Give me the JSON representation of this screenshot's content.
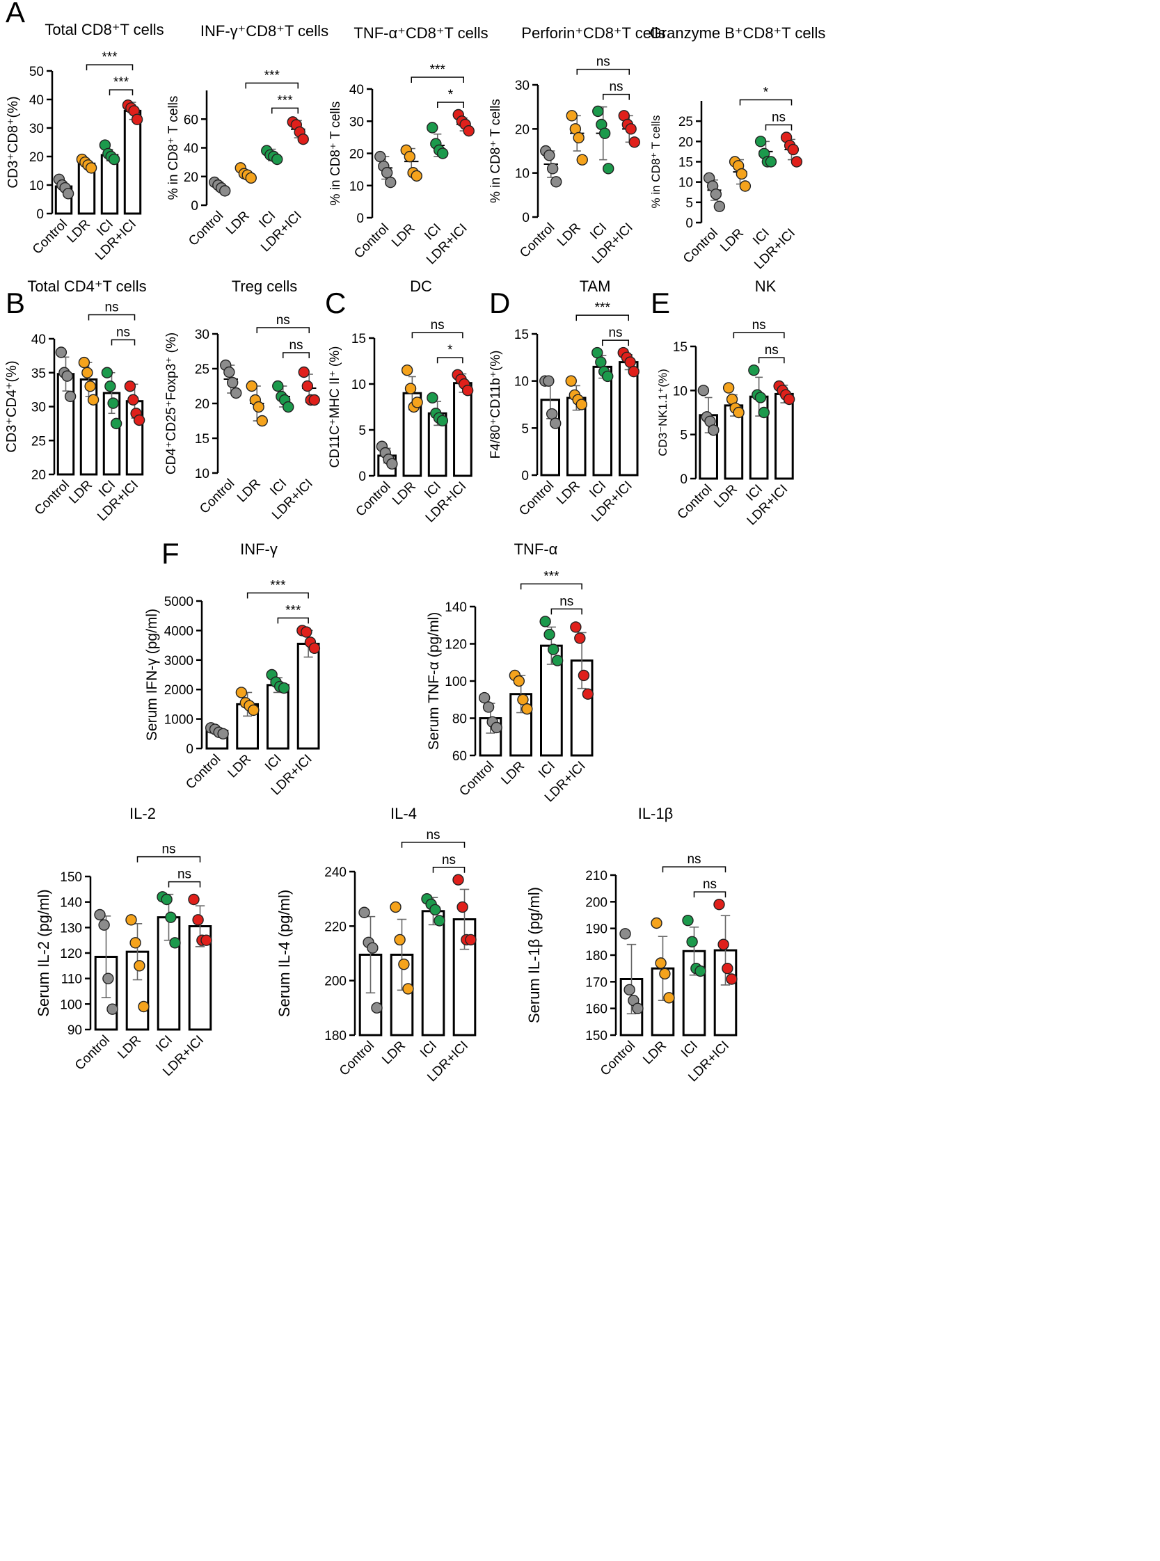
{
  "colors": {
    "Control": "#8c8c8c",
    "LDR": "#f5a31c",
    "ICI": "#1c9a4c",
    "LDR+ICI": "#e0201b"
  },
  "chart_data": [
    {
      "panel": "A",
      "type": "bar",
      "title": "Total CD8⁺T cells",
      "ylabel": "CD3⁺CD8⁺(%)",
      "ylim": [
        0,
        50
      ],
      "yticks": [
        0,
        10,
        20,
        30,
        40,
        50
      ],
      "categories": [
        "Control",
        "LDR",
        "ICI",
        "LDR+ICI"
      ],
      "means": [
        9.5,
        17.5,
        20.5,
        36
      ],
      "sd": [
        1.5,
        1.2,
        2.0,
        3.0
      ],
      "points": [
        [
          12,
          10,
          9,
          7
        ],
        [
          19,
          18,
          17,
          16
        ],
        [
          24,
          21,
          20,
          19
        ],
        [
          38,
          37,
          36,
          33
        ]
      ],
      "brackets": [
        {
          "from": 1,
          "to": 3,
          "label": "***"
        },
        {
          "from": 2,
          "to": 3,
          "label": "***"
        }
      ]
    },
    {
      "type": "scatter",
      "title": "INF-γ⁺CD8⁺T cells",
      "ylabel": "% in CD8⁺ T cells",
      "ylim": [
        0,
        80
      ],
      "yticks": [
        0,
        20,
        40,
        60
      ],
      "categories": [
        "Control",
        "LDR",
        "ICI",
        "LDR+ICI"
      ],
      "means": [
        13,
        22,
        35,
        53
      ],
      "sd": [
        3,
        2,
        4,
        6
      ],
      "points": [
        [
          16,
          14,
          12,
          10
        ],
        [
          26,
          22,
          21,
          19
        ],
        [
          38,
          35,
          34,
          32
        ],
        [
          58,
          56,
          51,
          46
        ]
      ],
      "brackets": [
        {
          "from": 1,
          "to": 3,
          "label": "***"
        },
        {
          "from": 2,
          "to": 3,
          "label": "***"
        }
      ]
    },
    {
      "type": "scatter",
      "title": "TNF-α⁺CD8⁺T cells",
      "ylabel": "% in CD8⁺ T cells",
      "ylim": [
        0,
        40
      ],
      "yticks": [
        0,
        10,
        20,
        30,
        40
      ],
      "categories": [
        "Control",
        "LDR",
        "ICI",
        "LDR+ICI"
      ],
      "means": [
        15.5,
        17.5,
        22.5,
        29
      ],
      "sd": [
        3.5,
        4,
        3.5,
        2
      ],
      "points": [
        [
          19,
          16,
          14,
          11
        ],
        [
          21,
          19,
          14,
          13
        ],
        [
          28,
          23,
          21,
          20
        ],
        [
          32,
          30,
          29,
          27
        ]
      ],
      "brackets": [
        {
          "from": 1,
          "to": 3,
          "label": "***"
        },
        {
          "from": 2,
          "to": 3,
          "label": "*"
        }
      ]
    },
    {
      "type": "scatter",
      "title": "Perforin⁺CD8⁺T cells",
      "ylabel": "% in CD8⁺ T cells",
      "ylim": [
        0,
        30
      ],
      "yticks": [
        0,
        10,
        20,
        30
      ],
      "categories": [
        "Control",
        "LDR",
        "ICI",
        "LDR+ICI"
      ],
      "means": [
        12,
        19,
        19,
        20
      ],
      "sd": [
        3,
        4,
        6,
        3
      ],
      "points": [
        [
          15,
          14,
          11,
          8
        ],
        [
          23,
          20,
          18,
          13
        ],
        [
          24,
          21,
          19,
          11
        ],
        [
          23,
          21,
          20,
          17
        ]
      ],
      "brackets": [
        {
          "from": 1,
          "to": 3,
          "label": "ns"
        },
        {
          "from": 2,
          "to": 3,
          "label": "ns"
        }
      ]
    },
    {
      "type": "scatter",
      "title": "Granzyme B⁺CD8⁺T cells",
      "ylabel": "% in CD8⁺ T cells",
      "ylim": [
        0,
        30
      ],
      "yticks": [
        0,
        5,
        10,
        15,
        20,
        25
      ],
      "categories": [
        "Control",
        "LDR",
        "ICI",
        "LDR+ICI"
      ],
      "means": [
        8,
        12.5,
        17.5,
        18
      ],
      "sd": [
        2.5,
        3,
        2.5,
        2.5
      ],
      "points": [
        [
          11,
          9,
          7,
          4
        ],
        [
          15,
          14,
          12,
          9
        ],
        [
          20,
          17,
          15,
          15
        ],
        [
          21,
          19,
          18,
          15
        ]
      ],
      "brackets": [
        {
          "from": 1,
          "to": 3,
          "label": "*"
        },
        {
          "from": 2,
          "to": 3,
          "label": "ns"
        }
      ]
    },
    {
      "panel": "B",
      "type": "bar",
      "title": "Total CD4⁺T cells",
      "ylabel": "CD3⁺CD4⁺(%)",
      "ylim": [
        20,
        40
      ],
      "yticks": [
        20,
        25,
        30,
        35,
        40
      ],
      "categories": [
        "Control",
        "LDR",
        "ICI",
        "LDR+ICI"
      ],
      "means": [
        34.8,
        34,
        32,
        30.8
      ],
      "sd": [
        2.5,
        2.5,
        3,
        2.5
      ],
      "points": [
        [
          38,
          35,
          34.5,
          31.5
        ],
        [
          36.5,
          35,
          33,
          31
        ],
        [
          35,
          33,
          30.5,
          27.5
        ],
        [
          33,
          31,
          29,
          28
        ]
      ],
      "brackets": [
        {
          "from": 1,
          "to": 3,
          "label": "ns"
        },
        {
          "from": 2,
          "to": 3,
          "label": "ns"
        }
      ]
    },
    {
      "type": "scatter",
      "title": "Treg cells",
      "ylabel": "CD4⁺CD25⁺Foxp3⁺ (%)",
      "ylim": [
        10,
        30
      ],
      "yticks": [
        10,
        15,
        20,
        25,
        30
      ],
      "categories": [
        "Control",
        "LDR",
        "ICI",
        "LDR+ICI"
      ],
      "means": [
        23.5,
        20,
        21,
        22.2
      ],
      "sd": [
        2,
        2.5,
        1.5,
        2
      ],
      "points": [
        [
          25.5,
          24.5,
          23,
          21.5
        ],
        [
          22.5,
          20.5,
          19.5,
          17.5
        ],
        [
          22.5,
          21,
          20.5,
          19.5
        ],
        [
          24.5,
          22.5,
          20.5,
          20.5
        ]
      ],
      "brackets": [
        {
          "from": 1,
          "to": 3,
          "label": "ns"
        },
        {
          "from": 2,
          "to": 3,
          "label": "ns"
        }
      ]
    },
    {
      "panel": "C",
      "type": "bar",
      "title": "DC",
      "ylabel": "CD11C⁺MHC II⁺ (%)",
      "ylim": [
        0,
        15
      ],
      "yticks": [
        0,
        5,
        10,
        15
      ],
      "categories": [
        "Control",
        "LDR",
        "ICI",
        "LDR+ICI"
      ],
      "means": [
        2.2,
        9,
        6.8,
        10.1
      ],
      "sd": [
        0.8,
        1.8,
        1.3,
        1
      ],
      "points": [
        [
          3.2,
          2.5,
          1.8,
          1.3
        ],
        [
          11.5,
          9.5,
          7.5,
          8
        ],
        [
          8.5,
          6.8,
          6.3,
          6
        ],
        [
          11,
          10.5,
          10,
          9.3
        ]
      ],
      "brackets": [
        {
          "from": 1,
          "to": 3,
          "label": "ns"
        },
        {
          "from": 2,
          "to": 3,
          "label": "*"
        }
      ]
    },
    {
      "panel": "D",
      "type": "bar",
      "title": "TAM",
      "ylabel": "F4/80⁺CD11b⁺(%)",
      "ylim": [
        0,
        15
      ],
      "yticks": [
        0,
        5,
        10,
        15
      ],
      "categories": [
        "Control",
        "LDR",
        "ICI",
        "LDR+ICI"
      ],
      "means": [
        8,
        8.2,
        11.5,
        12
      ],
      "sd": [
        2,
        1.3,
        1.2,
        0.8
      ],
      "points": [
        [
          10,
          10,
          6.5,
          5.5
        ],
        [
          10,
          8.5,
          8,
          7.5
        ],
        [
          13,
          12,
          11,
          10.5
        ],
        [
          13,
          12.5,
          12,
          11
        ]
      ],
      "brackets": [
        {
          "from": 1,
          "to": 3,
          "label": "***"
        },
        {
          "from": 2,
          "to": 3,
          "label": "ns"
        }
      ]
    },
    {
      "panel": "E",
      "type": "bar",
      "title": "NK",
      "ylabel": "CD3⁻NK1.1⁺(%)",
      "ylim": [
        0,
        15
      ],
      "yticks": [
        0,
        5,
        10,
        15
      ],
      "categories": [
        "Control",
        "LDR",
        "ICI",
        "LDR+ICI"
      ],
      "means": [
        7.2,
        8.3,
        9.3,
        9.6
      ],
      "sd": [
        2,
        1.2,
        2.2,
        1
      ],
      "points": [
        [
          10,
          7,
          6.5,
          5.5
        ],
        [
          10.3,
          9,
          8,
          7.5
        ],
        [
          12.3,
          9.5,
          9.2,
          7.5
        ],
        [
          10.5,
          10,
          9.5,
          9
        ]
      ],
      "brackets": [
        {
          "from": 1,
          "to": 3,
          "label": "ns"
        },
        {
          "from": 2,
          "to": 3,
          "label": "ns"
        }
      ]
    },
    {
      "panel": "F",
      "type": "bar",
      "title": "INF-γ",
      "ylabel": "Serum IFN-γ  (pg/ml)",
      "ylim": [
        0,
        5000
      ],
      "yticks": [
        0,
        1000,
        2000,
        3000,
        4000,
        5000
      ],
      "categories": [
        "Control",
        "LDR",
        "ICI",
        "LDR+ICI"
      ],
      "means": [
        600,
        1500,
        2150,
        3550
      ],
      "sd": [
        100,
        400,
        250,
        450
      ],
      "points": [
        [
          700,
          650,
          550,
          500
        ],
        [
          1900,
          1550,
          1450,
          1300
        ],
        [
          2500,
          2250,
          2100,
          2050
        ],
        [
          4000,
          3950,
          3600,
          3400
        ]
      ],
      "brackets": [
        {
          "from": 1,
          "to": 3,
          "label": "***"
        },
        {
          "from": 2,
          "to": 3,
          "label": "***"
        }
      ]
    },
    {
      "type": "bar",
      "title": "TNF-α",
      "ylabel": "Serum TNF-α  (pg/ml)",
      "ylim": [
        60,
        140
      ],
      "yticks": [
        60,
        80,
        100,
        120,
        140
      ],
      "categories": [
        "Control",
        "LDR",
        "ICI",
        "LDR+ICI"
      ],
      "means": [
        80,
        93,
        119,
        111
      ],
      "sd": [
        8,
        10,
        10,
        15
      ],
      "points": [
        [
          91,
          86,
          78,
          75
        ],
        [
          103,
          100,
          90,
          85
        ],
        [
          132,
          125,
          117,
          111
        ],
        [
          129,
          123,
          103,
          93
        ]
      ],
      "brackets": [
        {
          "from": 1,
          "to": 3,
          "label": "***"
        },
        {
          "from": 2,
          "to": 3,
          "label": "ns"
        }
      ]
    },
    {
      "type": "bar",
      "title": "IL-2",
      "ylabel": "Serum IL-2  (pg/ml)",
      "ylim": [
        90,
        150
      ],
      "yticks": [
        90,
        100,
        110,
        120,
        130,
        140,
        150
      ],
      "categories": [
        "Control",
        "LDR",
        "ICI",
        "LDR+ICI"
      ],
      "means": [
        118.5,
        120.5,
        134,
        130.5
      ],
      "sd": [
        16,
        11,
        9,
        8
      ],
      "points": [
        [
          135,
          131,
          110,
          98
        ],
        [
          133,
          124,
          115,
          99
        ],
        [
          142,
          141,
          134,
          124
        ],
        [
          141,
          133,
          125,
          125
        ]
      ],
      "brackets": [
        {
          "from": 1,
          "to": 3,
          "label": "ns"
        },
        {
          "from": 2,
          "to": 3,
          "label": "ns"
        }
      ]
    },
    {
      "type": "bar",
      "title": "IL-4",
      "ylabel": "Serum IL-4  (pg/ml)",
      "ylim": [
        180,
        240
      ],
      "yticks": [
        180,
        200,
        220,
        240
      ],
      "categories": [
        "Control",
        "LDR",
        "ICI",
        "LDR+ICI"
      ],
      "means": [
        209.5,
        209.5,
        225.5,
        222.5
      ],
      "sd": [
        14,
        13,
        5,
        11
      ],
      "points": [
        [
          225,
          214,
          212,
          190
        ],
        [
          227,
          215,
          206,
          197
        ],
        [
          230,
          228,
          226,
          222
        ],
        [
          237,
          227,
          215,
          215
        ]
      ],
      "brackets": [
        {
          "from": 1,
          "to": 3,
          "label": "ns"
        },
        {
          "from": 2,
          "to": 3,
          "label": "ns"
        }
      ]
    },
    {
      "type": "bar",
      "title": "IL-1β",
      "ylabel": "Serum IL-1β  (pg/ml)",
      "ylim": [
        150,
        210
      ],
      "yticks": [
        150,
        160,
        170,
        180,
        190,
        200,
        210
      ],
      "categories": [
        "Control",
        "LDR",
        "ICI",
        "LDR+ICI"
      ],
      "means": [
        171,
        175,
        181.5,
        181.8
      ],
      "sd": [
        13,
        12,
        9,
        13
      ],
      "points": [
        [
          188,
          167,
          163,
          160
        ],
        [
          192,
          177,
          173,
          164
        ],
        [
          193,
          185,
          175,
          174
        ],
        [
          199,
          184,
          175,
          171
        ]
      ],
      "brackets": [
        {
          "from": 1,
          "to": 3,
          "label": "ns"
        },
        {
          "from": 2,
          "to": 3,
          "label": "ns"
        }
      ]
    }
  ]
}
